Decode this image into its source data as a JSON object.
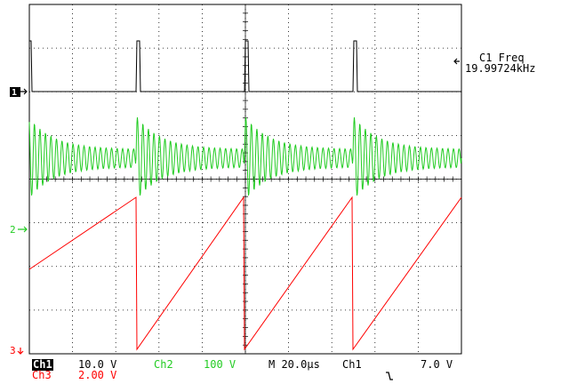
{
  "measurement": {
    "label": "C1 Freq",
    "value": "19.99724kHz"
  },
  "markers": {
    "ch1": "1",
    "ch2": "2",
    "ch3": "3"
  },
  "status": {
    "ch1_label": "Ch1",
    "ch1_scale": "10.0 V",
    "ch2_label": "Ch2",
    "ch2_scale": "100 V",
    "ch3_label": "Ch3",
    "ch3_scale": "2.00 V",
    "timebase": "M 20.0µs",
    "trigger_source": "Ch1",
    "trigger_level": "7.0 V"
  },
  "colors": {
    "ch1": "#000000",
    "ch2": "#22cc22",
    "ch3": "#ff0000",
    "grid": "#000000"
  },
  "chart_data": {
    "type": "line",
    "period_us": 50,
    "frequency_khz": 19.99724,
    "series": [
      {
        "name": "Ch1",
        "shape": "pulse train"
      },
      {
        "name": "Ch2",
        "shape": "damped oscillation"
      },
      {
        "name": "Ch3",
        "shape": "sawtooth"
      }
    ]
  }
}
